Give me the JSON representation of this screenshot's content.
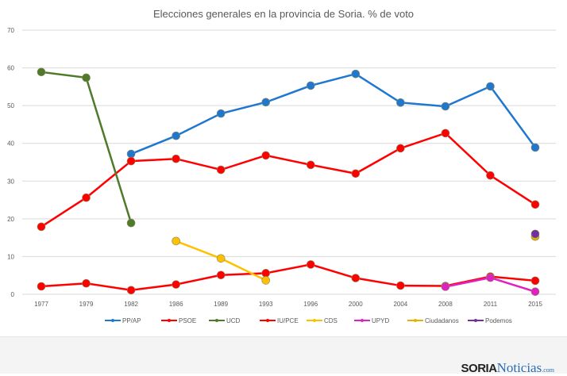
{
  "chart_data": {
    "type": "line",
    "title": "Elecciones generales en la provincia de Soria. % de voto",
    "categories": [
      "1977",
      "1979",
      "1982",
      "1986",
      "1989",
      "1993",
      "1996",
      "2000",
      "2004",
      "2008",
      "2011",
      "2015"
    ],
    "ylim": [
      0,
      70
    ],
    "yticks": [
      0,
      10,
      20,
      30,
      40,
      50,
      60,
      70
    ],
    "grid": true,
    "legend": "bottom",
    "series": [
      {
        "name": "PP/AP",
        "color": "#1f77d0",
        "values": [
          null,
          null,
          37.2,
          42.0,
          47.9,
          50.9,
          55.3,
          58.4,
          50.8,
          49.8,
          55.1,
          38.9
        ]
      },
      {
        "name": "PSOE",
        "color": "#ff0000",
        "values": [
          17.9,
          25.6,
          35.3,
          35.9,
          33.0,
          36.8,
          34.3,
          32.0,
          38.7,
          42.7,
          31.5,
          23.8
        ]
      },
      {
        "name": "UCD",
        "color": "#4e7a2a",
        "values": [
          58.9,
          57.4,
          18.9,
          null,
          null,
          null,
          null,
          null,
          null,
          null,
          null,
          null
        ]
      },
      {
        "name": "IU/PCE",
        "color": "#ff0000",
        "values": [
          2.1,
          2.9,
          1.1,
          2.6,
          5.1,
          5.6,
          7.9,
          4.3,
          2.3,
          2.2,
          4.7,
          3.6
        ]
      },
      {
        "name": "CDS",
        "color": "#ffc000",
        "values": [
          null,
          null,
          null,
          14.1,
          9.5,
          3.7,
          null,
          null,
          null,
          null,
          null,
          null
        ]
      },
      {
        "name": "UPYD",
        "color": "#e020c0",
        "values": [
          null,
          null,
          null,
          null,
          null,
          null,
          null,
          null,
          null,
          2.0,
          4.4,
          0.7
        ]
      },
      {
        "name": "Ciudadanos",
        "color": "#e8b000",
        "values": [
          null,
          null,
          null,
          null,
          null,
          null,
          null,
          null,
          null,
          null,
          null,
          15.3
        ]
      },
      {
        "name": "Podemos",
        "color": "#7030a0",
        "values": [
          null,
          null,
          null,
          null,
          null,
          null,
          null,
          null,
          null,
          null,
          null,
          16.0
        ]
      }
    ]
  },
  "logo": {
    "part1": "SORIA",
    "part2": "Noticias",
    "part3": ".com"
  }
}
